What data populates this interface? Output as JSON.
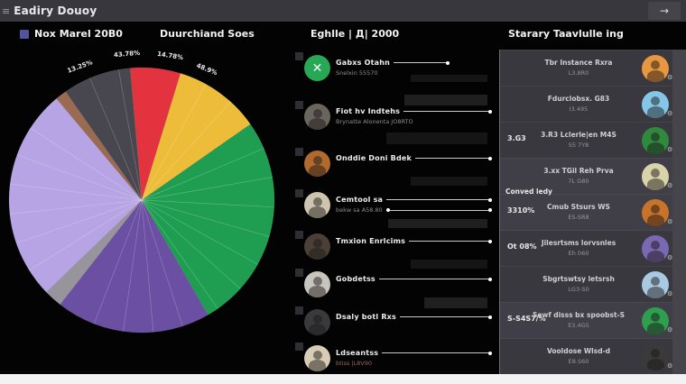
{
  "top_bar": {
    "title": "Eadiry Douoy",
    "menu_glyph": "≡",
    "arrow_glyph": "→"
  },
  "headers": {
    "col1": "Nox Marel 20B0",
    "col2": "Duurchiand Soes",
    "col3": "Eghlle | Д| 2000",
    "col4": "Starary Taavlulle ing"
  },
  "chart_data": {
    "type": "pie",
    "title": "Nox Marel 20B0",
    "legend_position": "none",
    "segments": [
      {
        "name": "red",
        "value": 6.1,
        "color": "#e2333f",
        "start": -5,
        "end": 17
      },
      {
        "name": "gold",
        "value": 10.6,
        "color": "#edbc39",
        "start": 17,
        "end": 55,
        "dividers": true
      },
      {
        "name": "green",
        "value": 26.4,
        "color": "#1f9e52",
        "start": 55,
        "end": 150,
        "dividers": true
      },
      {
        "name": "purple",
        "value": 18.9,
        "color": "#6b4fa2",
        "start": 150,
        "end": 218,
        "dividers": true
      },
      {
        "name": "gray",
        "value": 2.2,
        "color": "#98949c",
        "start": 218,
        "end": 226
      },
      {
        "name": "lavender",
        "value": 26.1,
        "color": "#b7a4e4",
        "start": 226,
        "end": 320,
        "dividers": true
      },
      {
        "name": "brown",
        "value": 1.4,
        "color": "#9a6a52",
        "start": 320,
        "end": 325
      },
      {
        "name": "slate",
        "value": 8.3,
        "color": "#48474f",
        "start": 325,
        "end": 355,
        "dividers": true
      }
    ],
    "labels": [
      {
        "text": "13.25%",
        "angle": -25
      },
      {
        "text": "43.78%",
        "angle": -6
      },
      {
        "text": "14.78%",
        "angle": 11
      },
      {
        "text": "48.9%",
        "angle": 27
      }
    ]
  },
  "middle_list": {
    "items": [
      {
        "name": "Gabxs Otahn",
        "subtext": "Snelxin 55570",
        "avatar_color": "#27a855",
        "avatar_glyph": "✕"
      },
      {
        "name": "Fiot hv Indtehs",
        "subtext": "Brynatte Alonenta JO8RTO",
        "avatar_color": "#6b655f",
        "avatar_glyph": ""
      },
      {
        "name": "Onddie Doni Bdek",
        "subtext": "",
        "avatar_color": "#b06a2e",
        "avatar_glyph": ""
      },
      {
        "name": "Cemtool sa",
        "subtext": "bekw sa A58.80",
        "avatar_color": "#cfc4b0",
        "avatar_glyph": ""
      },
      {
        "name": "Tmxion Enrlcims",
        "subtext": "",
        "avatar_color": "#4a4038",
        "avatar_glyph": ""
      },
      {
        "name": "Gobdetss",
        "subtext": "",
        "avatar_color": "#c8c4be",
        "avatar_glyph": ""
      },
      {
        "name": "Dsaly botl Rxs",
        "subtext": "",
        "avatar_color": "#3a3a3c",
        "avatar_glyph": ""
      },
      {
        "name": "Ldseantss",
        "subtext": "btiss |L8V90",
        "avatar_color": "#d8cdb4",
        "avatar_glyph": ""
      }
    ]
  },
  "right_panel": {
    "items": [
      {
        "name": "Tbr Instance Rxra",
        "value": "L3.8R0",
        "avatar_color": "#e8963f"
      },
      {
        "name": "Fdurclobsx. G83",
        "value": "I3.495",
        "avatar_color": "#85c6e8"
      },
      {
        "left_label": "3.G3",
        "name": "3.R3 Lclerle|en M4S",
        "value": "S5 7Y8",
        "avatar_color": "#2f8a3e"
      },
      {
        "name": "3.xx TGil Reh Prva",
        "value": "7L G80",
        "avatar_color": "#d9d3a9"
      },
      {
        "left_label_top": "Conved ledy",
        "left_label": "3310%",
        "name": "Cmub Stsurs WS",
        "value": "ES-SR8",
        "avatar_color": "#c8732a"
      },
      {
        "left_label": "Ot 08%",
        "name": "Jilesrtsms lorvsnles",
        "value": "Eh 060",
        "avatar_color": "#7a68b2"
      },
      {
        "name": "Sbgrtswtsy letsrsh",
        "value": "LG3-S0",
        "avatar_color": "#a9c9e2"
      },
      {
        "left_label": "S-S4S7/%",
        "name": "Sewf disss bx spoobst-S",
        "value": "E3.4G5",
        "avatar_color": "#2e9e4f"
      },
      {
        "name": "Vooldose Wlsd-d",
        "value": "E8.S60",
        "avatar_color": "#3a3a3a"
      }
    ],
    "row_action_icon": "gear-icon",
    "gear_glyph": "⚙"
  }
}
